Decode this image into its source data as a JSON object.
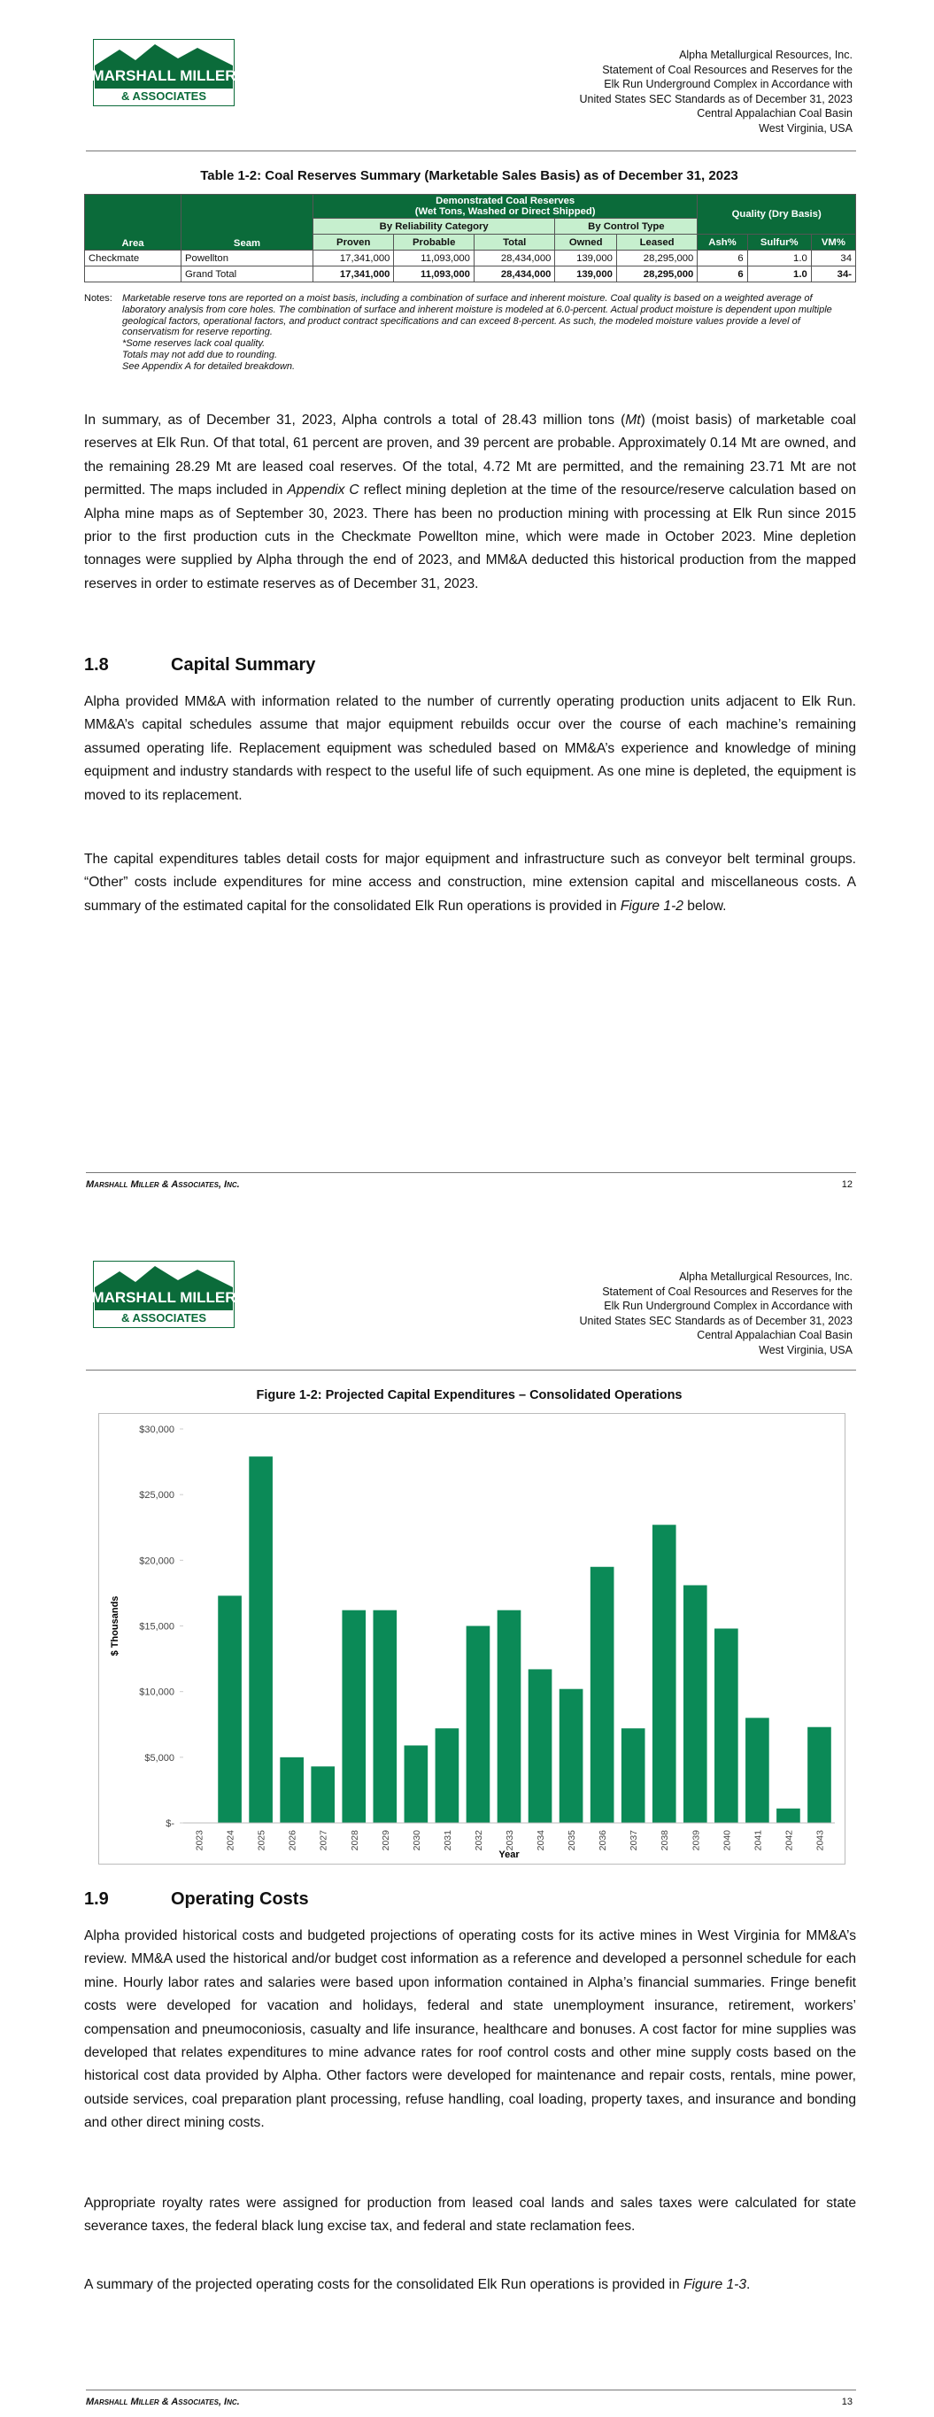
{
  "header": {
    "lines": [
      "Alpha Metallurgical Resources, Inc.",
      "Statement of Coal Resources and Reserves for the",
      "Elk Run Underground Complex in Accordance with",
      "United States SEC Standards as of December 31, 2023",
      "Central Appalachian Coal Basin",
      "West Virginia, USA"
    ]
  },
  "logo": {
    "line1": "MARSHALL MILLER",
    "line2": "& ASSOCIATES"
  },
  "footer": {
    "company": "Marshall Miller & Associates, Inc."
  },
  "pages": [
    {
      "number": "12",
      "table": {
        "title": "Table 1-2:  Coal Reserves Summary (Marketable Sales Basis) as of December 31, 2023",
        "group_header": "Demonstrated Coal Reserves",
        "group_subheader": "(Wet Tons, Washed or Direct Shipped)",
        "quality_header": "Quality (Dry Basis)",
        "reliability": "By Reliability Category",
        "control": "By Control Type",
        "columns": [
          "Area",
          "Seam",
          "Proven",
          "Probable",
          "Total",
          "Owned",
          "Leased",
          "Ash%",
          "Sulfur%",
          "VM%"
        ],
        "rows": [
          {
            "area": "Checkmate",
            "seam": "Powellton",
            "values": [
              "17,341,000",
              "11,093,000",
              "28,434,000",
              "139,000",
              "28,295,000",
              "6",
              "1.0",
              "34"
            ]
          },
          {
            "seam": "Grand Total",
            "values": [
              "17,341,000",
              "11,093,000",
              "28,434,000",
              "139,000",
              "28,295,000",
              "6",
              "1.0",
              "34-"
            ]
          }
        ],
        "notes_label": "Notes:",
        "notes": [
          "Marketable reserve tons are reported on a moist basis, including a combination of surface and inherent moisture.  Coal quality is based on a weighted average of laboratory analysis from core holes.  The combination of surface and inherent moisture is modeled at 6.0-percent.  Actual product moisture is dependent upon multiple geological factors, operational factors, and product contract specifications and can exceed 8-percent.  As such, the modeled moisture values provide a level of conservatism for reserve reporting.",
          "*Some reserves lack coal quality.",
          "Totals may not add due to rounding.",
          "See Appendix A for detailed breakdown."
        ]
      },
      "paragraphs": [
        [
          "In summary, as of December 31, 2023, Alpha controls a total of 28.43 million tons (",
          "Mt",
          ") (moist basis) of marketable coal reserves at Elk Run.  Of that total, 61 percent are proven, and 39 percent are probable.  Approximately 0.14 Mt are owned, and the remaining 28.29 Mt are leased coal reserves.  Of the total, 4.72 Mt are permitted, and the remaining 23.71 Mt are not permitted.  The maps included in ",
          "Appendix C",
          " reflect mining depletion at the time of the resource/reserve calculation based on Alpha mine maps as of September 30, 2023.  There has been no production mining with processing at Elk Run since 2015 prior to the first production cuts in the Checkmate Powellton mine, which were made in October 2023.  Mine depletion tonnages were supplied by Alpha through the end of 2023, and MM&A deducted this historical production from the mapped reserves in order to estimate reserves as of December 31, 2023."
        ]
      ],
      "section": {
        "number": "1.8",
        "title": "Capital Summary",
        "paragraphs": [
          [
            "Alpha provided MM&A with information related to the number of currently operating production units adjacent to Elk Run.  MM&A’s capital schedules assume that major equipment rebuilds occur over the course of each machine’s remaining assumed operating life.  Replacement equipment was scheduled based on MM&A’s experience and knowledge of mining equipment and industry standards with respect to the useful life of such equipment.  As one mine is depleted, the equipment is moved to its replacement."
          ],
          [
            "The capital expenditures tables detail costs for major equipment and infrastructure such as conveyor belt terminal groups.  “Other” costs include expenditures for mine access and construction, mine extension capital and miscellaneous costs.  A summary of the estimated capital for the consolidated Elk Run operations is provided in ",
            "Figure 1-2",
            " below."
          ]
        ]
      }
    },
    {
      "number": "13",
      "section": {
        "number": "1.9",
        "title": "Operating Costs",
        "paragraphs": [
          [
            "Alpha provided historical costs and budgeted projections of operating costs for its active mines in West Virginia for MM&A’s review.  MM&A used the historical and/or budget cost information as a reference and developed a personnel schedule for each mine.  Hourly labor rates and salaries were based upon information contained in Alpha’s financial summaries.  Fringe benefit costs were developed for vacation and holidays, federal and state unemployment insurance, retirement, workers’ compensation and pneumoconiosis, casualty and life insurance, healthcare and bonuses.  A cost factor for mine supplies was developed that relates expenditures to mine advance rates for roof control costs and other mine supply costs based on the historical cost data provided by Alpha.  Other factors were developed for maintenance and repair costs, rentals, mine power, outside services, coal preparation plant processing, refuse handling, coal loading, property taxes, and insurance and bonding and other direct mining costs."
          ],
          [
            "Appropriate royalty rates were assigned for production from leased coal lands and sales taxes were calculated for state severance taxes, the federal black lung excise tax, and federal and state reclamation fees."
          ],
          [
            "A summary of the projected operating costs for the consolidated Elk Run operations is provided in ",
            "Figure 1-3",
            "."
          ]
        ]
      }
    }
  ],
  "chart_data": {
    "type": "bar",
    "title": "Figure 1-2:  Projected Capital Expenditures – Consolidated Operations",
    "x_label": "Year",
    "y_label": "$ Thousands",
    "color": "#0b8a57",
    "grid": false,
    "categories": [
      "2023",
      "2024",
      "2025",
      "2026",
      "2027",
      "2028",
      "2029",
      "2030",
      "2031",
      "2032",
      "2033",
      "2034",
      "2035",
      "2036",
      "2037",
      "2038",
      "2039",
      "2040",
      "2041",
      "2042",
      "2043"
    ],
    "values": [
      0,
      17300,
      27900,
      5000,
      4300,
      16200,
      16200,
      5900,
      7200,
      15000,
      16200,
      11700,
      10200,
      19500,
      7200,
      22700,
      18100,
      14800,
      8000,
      1100,
      7300
    ],
    "ylim": [
      0,
      30000
    ],
    "yticks": [
      {
        "value": 0,
        "label": "$-"
      },
      {
        "value": 5000,
        "label": "$5,000"
      },
      {
        "value": 10000,
        "label": "$10,000"
      },
      {
        "value": 15000,
        "label": "$15,000"
      },
      {
        "value": 20000,
        "label": "$20,000"
      },
      {
        "value": 25000,
        "label": "$25,000"
      },
      {
        "value": 30000,
        "label": "$30,000"
      }
    ]
  }
}
